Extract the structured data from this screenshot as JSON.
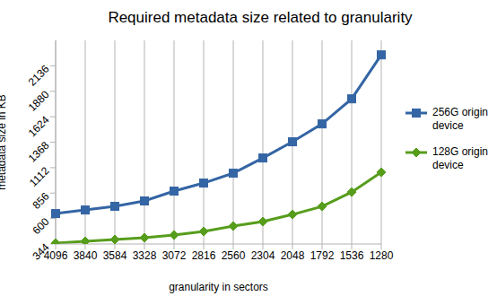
{
  "chart_data": {
    "type": "line",
    "title": "Required metadata size related to granularity",
    "x_label": "granularity in sectors",
    "y_label": "metadata size in KB",
    "categories": [
      "4096",
      "3840",
      "3584",
      "3328",
      "3072",
      "2816",
      "2560",
      "2304",
      "2048",
      "1792",
      "1536",
      "1280"
    ],
    "series": [
      {
        "name": "256G origin device",
        "color": "#3465a4",
        "marker": "square",
        "values": [
          650,
          686,
          723,
          777,
          876,
          957,
          1056,
          1209,
          1372,
          1552,
          1804,
          2246
        ]
      },
      {
        "name": "128G origin device",
        "color": "#579d1c",
        "marker": "diamond",
        "values": [
          353,
          371,
          389,
          407,
          434,
          470,
          524,
          569,
          641,
          722,
          866,
          1065
        ]
      }
    ],
    "ylim": [
      344,
      2392
    ],
    "yticks": [
      344,
      600,
      856,
      1112,
      1368,
      1624,
      1880,
      2136
    ],
    "grid": true,
    "legend": "right"
  }
}
